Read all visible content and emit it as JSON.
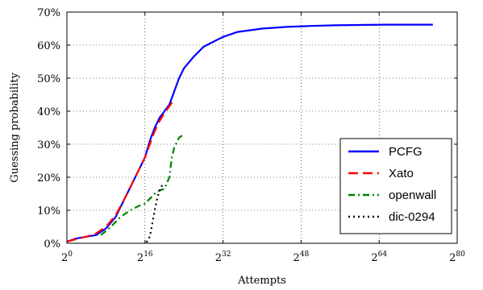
{
  "chart_data": {
    "type": "line",
    "title": "",
    "xlabel": "Attempts",
    "ylabel": "Guessing probability",
    "xscale": "log2",
    "xlim_exponent": [
      0,
      80
    ],
    "ylim": [
      0,
      70
    ],
    "grid": true,
    "legend_position": "bottom-right",
    "x_ticks": [
      {
        "base": "2",
        "exp": "0",
        "value": 0
      },
      {
        "base": "2",
        "exp": "16",
        "value": 16
      },
      {
        "base": "2",
        "exp": "32",
        "value": 32
      },
      {
        "base": "2",
        "exp": "48",
        "value": 48
      },
      {
        "base": "2",
        "exp": "64",
        "value": 64
      },
      {
        "base": "2",
        "exp": "80",
        "value": 80
      }
    ],
    "y_ticks": [
      {
        "label": "0%",
        "value": 0
      },
      {
        "label": "10%",
        "value": 10
      },
      {
        "label": "20%",
        "value": 20
      },
      {
        "label": "30%",
        "value": 30
      },
      {
        "label": "40%",
        "value": 40
      },
      {
        "label": "50%",
        "value": 50
      },
      {
        "label": "60%",
        "value": 60
      },
      {
        "label": "70%",
        "value": 70
      }
    ],
    "series": [
      {
        "name": "PCFG",
        "color": "#0000ff",
        "dash": "solid",
        "x_exponent": [
          0,
          2,
          4,
          6,
          8,
          10,
          12,
          14,
          16,
          17,
          18,
          19,
          20,
          21,
          22,
          23,
          24,
          26,
          28,
          30,
          32,
          35,
          40,
          45,
          50,
          55,
          60,
          65,
          70,
          75
        ],
        "y": [
          0.5,
          1.5,
          2,
          2.5,
          4.5,
          8,
          14,
          20,
          26,
          31,
          35,
          38,
          40,
          42,
          46,
          50,
          53,
          56.5,
          59.5,
          61,
          62.5,
          64,
          65,
          65.5,
          65.8,
          66,
          66.1,
          66.2,
          66.2,
          66.2
        ]
      },
      {
        "name": "Xato",
        "color": "#ff0000",
        "dash": "long",
        "x_exponent": [
          0,
          2,
          4,
          6,
          8,
          10,
          12,
          14,
          16,
          17,
          18,
          19,
          20,
          21,
          22
        ],
        "y": [
          0.5,
          1.3,
          2,
          3,
          5,
          8.5,
          14,
          20,
          26,
          30,
          34,
          37,
          39.5,
          41.5,
          43.5
        ]
      },
      {
        "name": "openwall",
        "color": "#008000",
        "dash": "dashdot",
        "x_exponent": [
          7,
          9,
          11,
          13,
          15,
          16,
          17,
          18,
          19,
          20,
          21,
          21.5,
          22,
          23,
          24
        ],
        "y": [
          2.5,
          5,
          8,
          10,
          11.5,
          12,
          13.5,
          15,
          16,
          16.5,
          20,
          26,
          29,
          32,
          33
        ]
      },
      {
        "name": "dic-0294",
        "color": "#000000",
        "dash": "dotted",
        "x_exponent": [
          16.3,
          17,
          17.5,
          18,
          18.5,
          19,
          19.5,
          20
        ],
        "y": [
          0.3,
          2,
          6,
          10,
          13.5,
          16,
          17.5,
          18
        ]
      }
    ]
  }
}
